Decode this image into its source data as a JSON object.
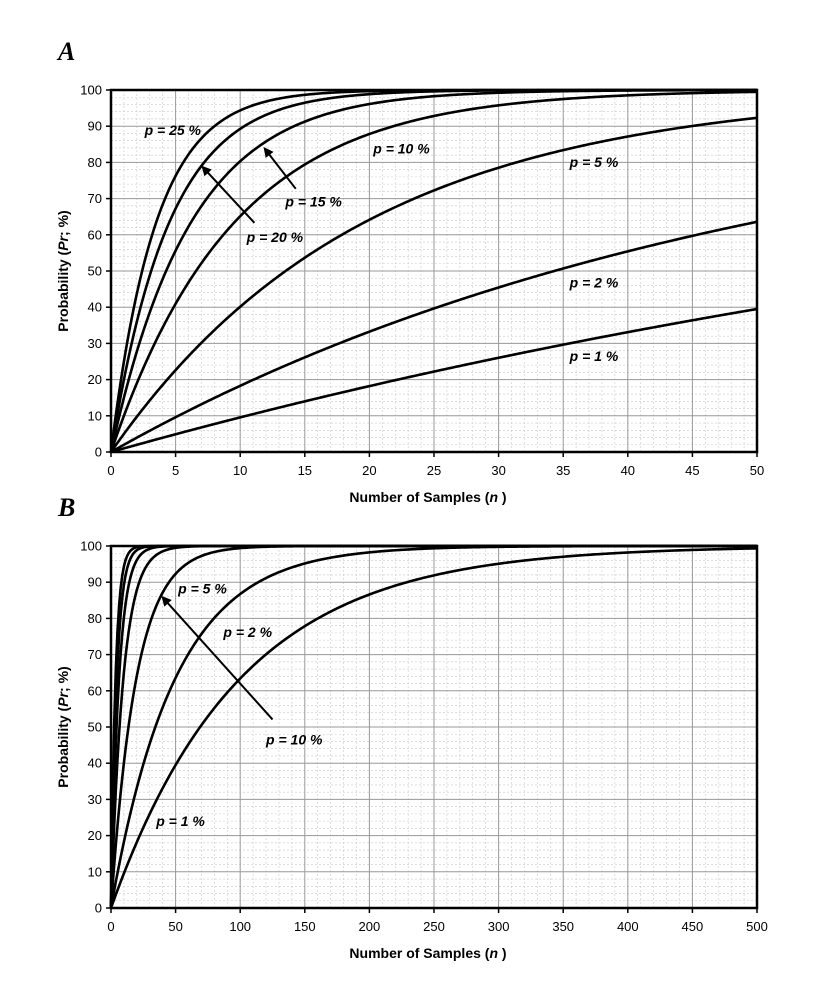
{
  "colors": {
    "background": "#ffffff",
    "curve": "#000000",
    "major_grid": "#9a9a9a",
    "minor_grid": "#c8c8c8"
  },
  "chart_data": [
    {
      "panel": "A",
      "type": "line",
      "formula": "Pr = 100 * (1 - (1 - p)^n)",
      "xlabel_main": "Number of Samples (",
      "xlabel_var": "n",
      "xlabel_end": ")",
      "ylabel_main": "Probability (",
      "ylabel_var": "Pr",
      "ylabel_end": "; %)",
      "xlim": [
        0,
        50
      ],
      "ylim": [
        0,
        100
      ],
      "xticks": [
        0,
        5,
        10,
        15,
        20,
        25,
        30,
        35,
        40,
        45,
        50
      ],
      "yticks": [
        0,
        10,
        20,
        30,
        40,
        50,
        60,
        70,
        80,
        90,
        100
      ],
      "grid": true,
      "series": [
        {
          "name": "p = 25 %",
          "p": 0.25
        },
        {
          "name": "p = 20 %",
          "p": 0.2
        },
        {
          "name": "p = 15 %",
          "p": 0.15
        },
        {
          "name": "p = 10 %",
          "p": 0.1
        },
        {
          "name": "p = 5 %",
          "p": 0.05
        },
        {
          "name": "p = 2 %",
          "p": 0.02
        },
        {
          "name": "p = 1 %",
          "p": 0.01
        }
      ],
      "labels": [
        {
          "text": "p = 25 %",
          "x": 2.6,
          "y": 87.6
        },
        {
          "text": "p = 20 %",
          "x": 10.5,
          "y": 58.0
        },
        {
          "text": "p = 15 %",
          "x": 13.5,
          "y": 67.8
        },
        {
          "text": "p = 10 %",
          "x": 20.3,
          "y": 82.4
        },
        {
          "text": "p = 5 %",
          "x": 35.5,
          "y": 78.7
        },
        {
          "text": "p = 2 %",
          "x": 35.5,
          "y": 45.4
        },
        {
          "text": "p = 1 %",
          "x": 35.5,
          "y": 25.1
        }
      ],
      "arrows": [
        {
          "from": [
            11.1,
            63.3
          ],
          "to": [
            7.1,
            78.7
          ]
        },
        {
          "from": [
            14.3,
            72.7
          ],
          "to": [
            11.9,
            83.8
          ]
        }
      ]
    },
    {
      "panel": "B",
      "type": "line",
      "formula": "Pr = 100 * (1 - (1 - p)^n)",
      "xlabel_main": "Number of Samples (",
      "xlabel_var": "n",
      "xlabel_end": ")",
      "ylabel_main": "Probability (",
      "ylabel_var": "Pr",
      "ylabel_end": "; %)",
      "xlim": [
        0,
        500
      ],
      "ylim": [
        0,
        100
      ],
      "xticks": [
        0,
        50,
        100,
        150,
        200,
        250,
        300,
        350,
        400,
        450,
        500
      ],
      "yticks": [
        0,
        10,
        20,
        30,
        40,
        50,
        60,
        70,
        80,
        90,
        100
      ],
      "grid": true,
      "series": [
        {
          "p": 0.25
        },
        {
          "p": 0.2
        },
        {
          "p": 0.15
        },
        {
          "name": "p = 10 %",
          "p": 0.1
        },
        {
          "name": "p = 5 %",
          "p": 0.05
        },
        {
          "name": "p = 2 %",
          "p": 0.02
        },
        {
          "name": "p = 1 %",
          "p": 0.01
        }
      ],
      "labels": [
        {
          "text": "p = 5 %",
          "x": 52,
          "y": 86.9
        },
        {
          "text": "p = 2 %",
          "x": 87,
          "y": 74.8
        },
        {
          "text": "p = 10 %",
          "x": 120,
          "y": 45.2
        },
        {
          "text": "p = 1 %",
          "x": 35,
          "y": 22.7
        }
      ],
      "arrows": [
        {
          "from": [
            125,
            52.1
          ],
          "to": [
            40,
            85.8
          ]
        }
      ]
    }
  ]
}
